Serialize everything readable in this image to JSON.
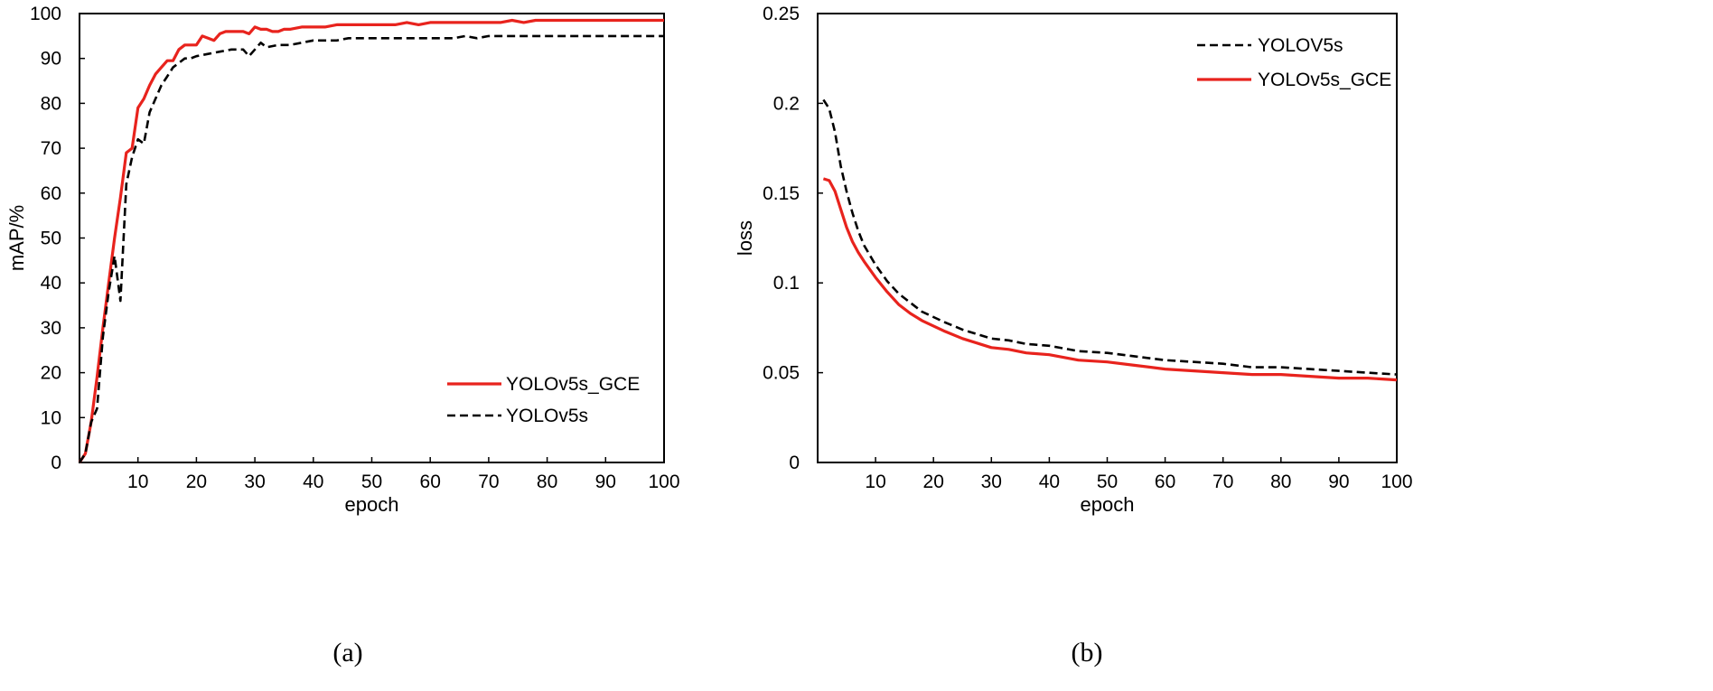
{
  "chart_data": [
    {
      "type": "line",
      "panel": "a",
      "caption": "(a)",
      "xlabel": "epoch",
      "ylabel": "mAP/%",
      "xlim": [
        0,
        100
      ],
      "ylim": [
        0,
        100
      ],
      "xticks": [
        10,
        20,
        30,
        40,
        50,
        60,
        70,
        80,
        90,
        100
      ],
      "yticks": [
        0,
        10,
        20,
        30,
        40,
        50,
        60,
        70,
        80,
        90,
        100
      ],
      "legend_position": "bottom-right",
      "series": [
        {
          "name": "YOLOv5s_GCE",
          "color": "#e8231d",
          "style": "solid",
          "x": [
            0,
            1,
            2,
            3,
            4,
            5,
            6,
            7,
            8,
            9,
            10,
            11,
            12,
            13,
            14,
            15,
            16,
            17,
            18,
            19,
            20,
            21,
            22,
            23,
            24,
            25,
            26,
            27,
            28,
            29,
            30,
            31,
            32,
            33,
            34,
            35,
            36,
            38,
            40,
            42,
            44,
            46,
            48,
            50,
            52,
            54,
            56,
            58,
            60,
            62,
            64,
            66,
            68,
            70,
            72,
            74,
            76,
            78,
            80,
            82,
            84,
            86,
            88,
            90,
            92,
            94,
            96,
            98,
            100
          ],
          "y": [
            0,
            2,
            9,
            19,
            30,
            40,
            50,
            59,
            69,
            70,
            79,
            81,
            84,
            86.5,
            88,
            89.5,
            89.5,
            92,
            93,
            93,
            93,
            95,
            94.5,
            94,
            95.5,
            96,
            96,
            96,
            96,
            95.5,
            97,
            96.5,
            96.5,
            96,
            96,
            96.5,
            96.5,
            97,
            97,
            97,
            97.5,
            97.5,
            97.5,
            97.5,
            97.5,
            97.5,
            98,
            97.5,
            98,
            98,
            98,
            98,
            98,
            98,
            98,
            98.5,
            98,
            98.5,
            98.5,
            98.5,
            98.5,
            98.5,
            98.5,
            98.5,
            98.5,
            98.5,
            98.5,
            98.5,
            98.5
          ]
        },
        {
          "name": "YOLOv5s",
          "color": "#000000",
          "style": "dashed",
          "x": [
            0,
            1,
            2,
            3,
            4,
            5,
            6,
            7,
            8,
            9,
            10,
            11,
            12,
            13,
            14,
            15,
            16,
            17,
            18,
            19,
            20,
            22,
            24,
            26,
            28,
            29,
            30,
            31,
            32,
            34,
            36,
            38,
            40,
            42,
            44,
            46,
            48,
            50,
            52,
            54,
            56,
            58,
            60,
            62,
            64,
            66,
            68,
            70,
            72,
            74,
            76,
            78,
            80,
            82,
            84,
            86,
            88,
            90,
            92,
            94,
            96,
            98,
            100
          ],
          "y": [
            0,
            2,
            9,
            12,
            28,
            38,
            46,
            36,
            62,
            68,
            72,
            71,
            78,
            81,
            84,
            86,
            88,
            89,
            90,
            90,
            90.5,
            91,
            91.5,
            92,
            92,
            90.5,
            92,
            93.5,
            92.5,
            93,
            93,
            93.5,
            94,
            94,
            94,
            94.5,
            94.5,
            94.5,
            94.5,
            94.5,
            94.5,
            94.5,
            94.5,
            94.5,
            94.5,
            95,
            94.5,
            95,
            95,
            95,
            95,
            95,
            95,
            95,
            95,
            95,
            95,
            95,
            95,
            95,
            95,
            95,
            95
          ]
        }
      ]
    },
    {
      "type": "line",
      "panel": "b",
      "caption": "(b)",
      "xlabel": "epoch",
      "ylabel": "loss",
      "xlim": [
        0,
        100
      ],
      "ylim": [
        0,
        0.25
      ],
      "xticks": [
        10,
        20,
        30,
        40,
        50,
        60,
        70,
        80,
        90,
        100
      ],
      "yticks": [
        0,
        0.05,
        0.1,
        0.15,
        0.2,
        0.25
      ],
      "ytick_labels": [
        "0",
        "0.05",
        "0.1",
        "0.15",
        "0.2",
        "0.25"
      ],
      "legend_position": "top-right",
      "series": [
        {
          "name": "YOLOV5s",
          "color": "#000000",
          "style": "dashed",
          "x": [
            1,
            2,
            3,
            4,
            5,
            6,
            7,
            8,
            10,
            12,
            14,
            16,
            18,
            20,
            22,
            25,
            28,
            30,
            33,
            36,
            40,
            45,
            50,
            55,
            60,
            65,
            70,
            75,
            80,
            85,
            90,
            95,
            100
          ],
          "y": [
            0.202,
            0.197,
            0.184,
            0.165,
            0.151,
            0.139,
            0.129,
            0.121,
            0.11,
            0.101,
            0.094,
            0.089,
            0.084,
            0.081,
            0.078,
            0.074,
            0.071,
            0.069,
            0.068,
            0.066,
            0.065,
            0.062,
            0.061,
            0.059,
            0.057,
            0.056,
            0.055,
            0.053,
            0.053,
            0.052,
            0.051,
            0.05,
            0.049
          ]
        },
        {
          "name": "YOLOv5s_GCE",
          "color": "#e8231d",
          "style": "solid",
          "x": [
            1,
            2,
            3,
            4,
            5,
            6,
            7,
            8,
            10,
            12,
            14,
            16,
            18,
            20,
            22,
            25,
            28,
            30,
            33,
            36,
            40,
            45,
            50,
            55,
            60,
            65,
            70,
            75,
            80,
            85,
            90,
            95,
            100
          ],
          "y": [
            0.158,
            0.157,
            0.151,
            0.141,
            0.131,
            0.123,
            0.117,
            0.112,
            0.103,
            0.095,
            0.088,
            0.083,
            0.079,
            0.076,
            0.073,
            0.069,
            0.066,
            0.064,
            0.063,
            0.061,
            0.06,
            0.057,
            0.056,
            0.054,
            0.052,
            0.051,
            0.05,
            0.049,
            0.049,
            0.048,
            0.047,
            0.047,
            0.046
          ]
        }
      ]
    }
  ]
}
